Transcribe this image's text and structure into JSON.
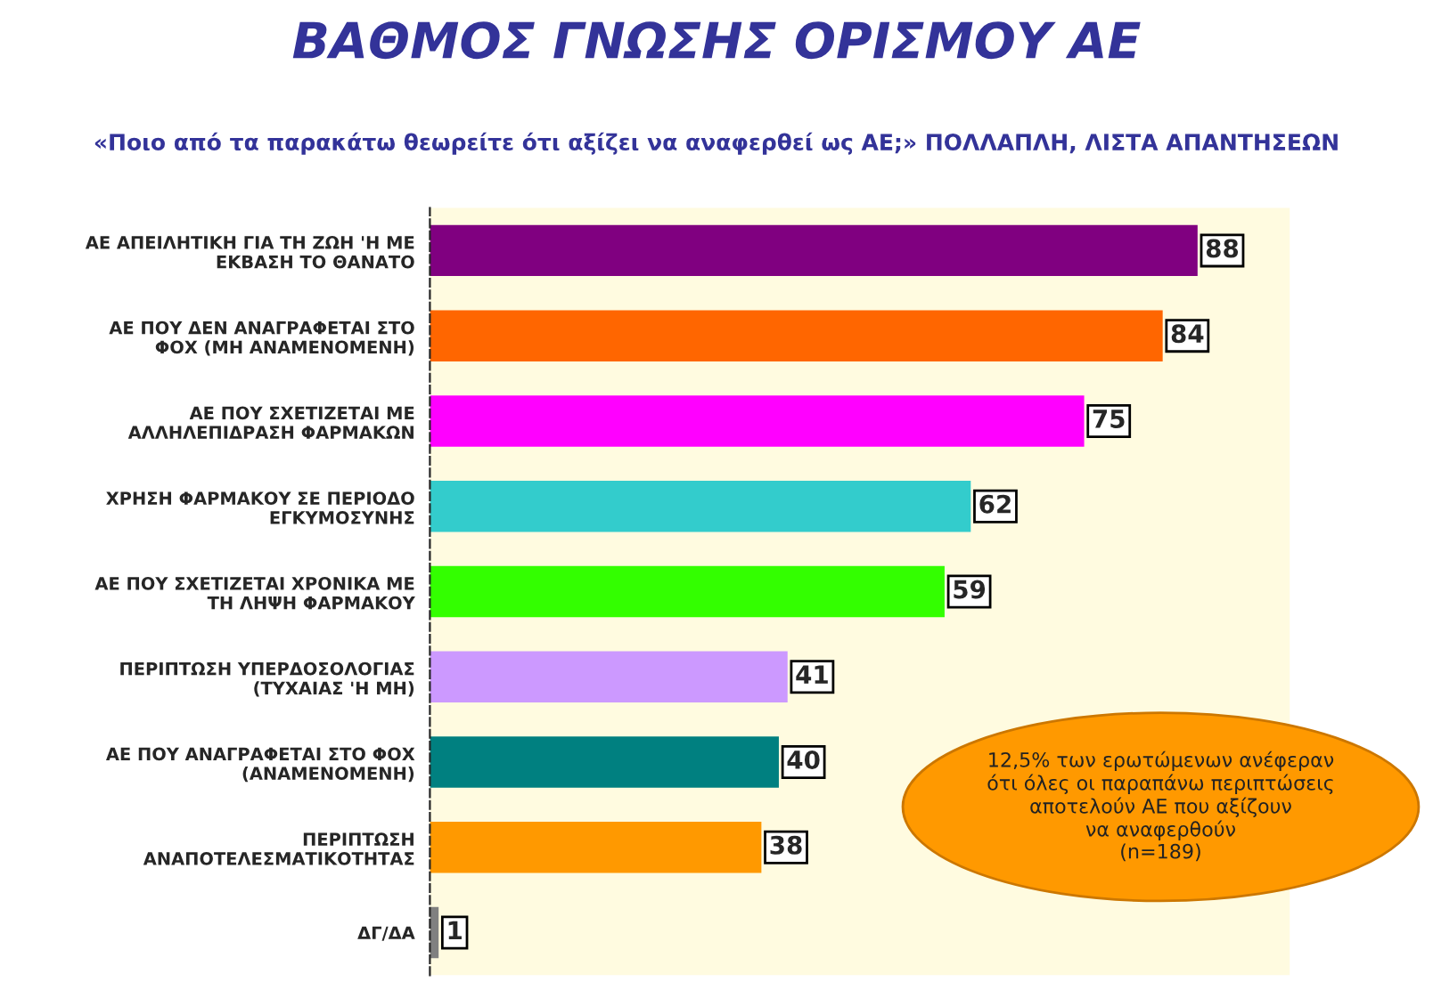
{
  "chart_data": {
    "type": "bar",
    "orientation": "horizontal",
    "title": "ΒΑΘΜΟΣ ΓΝΩΣΗΣ ΟΡΙΣΜΟΥ ΑΕ",
    "subtitle": "«Ποιο από τα παρακάτω θεωρείτε ότι αξίζει να αναφερθεί ως ΑΕ;» ΠΟΛΛΑΠΛΗ, ΛΙΣΤΑ ΑΠΑΝΤΗΣΕΩΝ",
    "categories": [
      "ΑΕ ΑΠΕΙΛΗΤΙΚΗ ΓΙΑ ΤΗ ΖΩΗ 'Η ΜΕ\nΕΚΒΑΣΗ ΤΟ ΘΑΝΑΤΟ",
      "ΑΕ ΠΟΥ ΔΕΝ ΑΝΑΓΡΑΦΕΤΑΙ ΣΤΟ\nΦΟΧ (ΜΗ ΑΝΑΜΕΝΟΜΕΝΗ)",
      "ΑΕ ΠΟΥ ΣΧΕΤΙΖΕΤΑΙ ΜΕ\nΑΛΛΗΛΕΠΙΔΡΑΣΗ ΦΑΡΜΑΚΩΝ",
      "ΧΡΗΣΗ ΦΑΡΜΑΚΟΥ ΣΕ ΠΕΡΙΟΔΟ\nΕΓΚΥΜΟΣΥΝΗΣ",
      "ΑΕ ΠΟΥ ΣΧΕΤΙΖΕΤΑΙ ΧΡΟΝΙΚΑ ΜΕ\nΤΗ ΛΗΨΗ ΦΑΡΜΑΚΟΥ",
      "ΠΕΡΙΠΤΩΣΗ ΥΠΕΡΔΟΣΟΛΟΓΙΑΣ\n(ΤΥΧΑΙΑΣ 'Η ΜΗ)",
      "ΑΕ ΠΟΥ ΑΝΑΓΡΑΦΕΤΑΙ ΣΤΟ ΦΟΧ\n(ΑΝΑΜΕΝΟΜΕΝΗ)",
      "ΠΕΡΙΠΤΩΣΗ\nΑΝΑΠΟΤΕΛΕΣΜΑΤΙΚΟΤΗΤΑΣ",
      "ΔΓ/ΔΑ"
    ],
    "values": [
      88,
      84,
      75,
      62,
      59,
      41,
      40,
      38,
      1
    ],
    "colors": [
      "#800080",
      "#ff6600",
      "#ff00ff",
      "#33cccc",
      "#33ff00",
      "#cc99ff",
      "#008080",
      "#ff9900",
      "#808080"
    ],
    "data_labels": true,
    "annotations": [
      "12,5% των ερωτώμενων ανέφεραν\nότι όλες οι παραπάνω περιπτώσεις\nαποτελούν ΑΕ που αξίζουν\nνα αναφερθούν\n(n=189)"
    ]
  }
}
